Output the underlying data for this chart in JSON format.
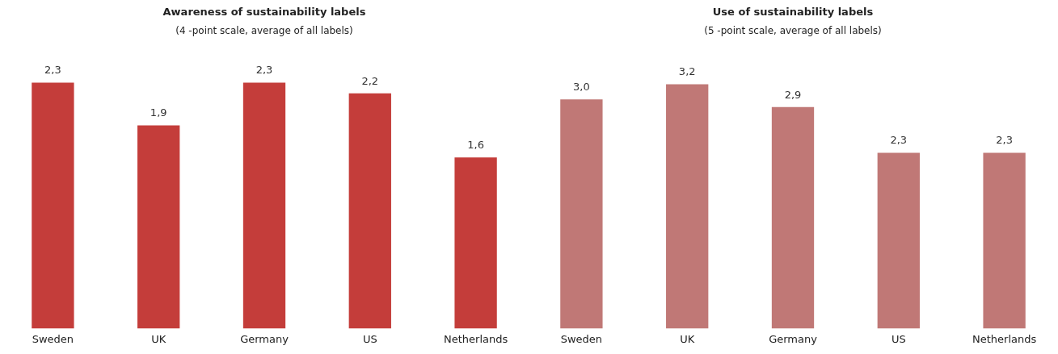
{
  "chart_data": [
    {
      "type": "bar",
      "title": "Awareness of sustainability labels",
      "subtitle": "(4 -point scale, average of all labels)",
      "categories": [
        "Sweden",
        "UK",
        "Germany",
        "US",
        "Netherlands"
      ],
      "values": [
        2.3,
        1.9,
        2.3,
        2.2,
        1.6
      ],
      "value_labels": [
        "2,3",
        "1,9",
        "2,3",
        "2,2",
        "1,6"
      ],
      "color": "#c43d3a",
      "grid": false,
      "legend": false
    },
    {
      "type": "bar",
      "title": "Use of sustainability labels",
      "subtitle": "(5 -point scale, average of all labels)",
      "categories": [
        "Sweden",
        "UK",
        "Germany",
        "US",
        "Netherlands"
      ],
      "values": [
        3.0,
        3.2,
        2.9,
        2.3,
        2.3
      ],
      "value_labels": [
        "3,0",
        "3,2",
        "2,9",
        "2,3",
        "2,3"
      ],
      "color": "#c07876",
      "grid": false,
      "legend": false
    }
  ]
}
